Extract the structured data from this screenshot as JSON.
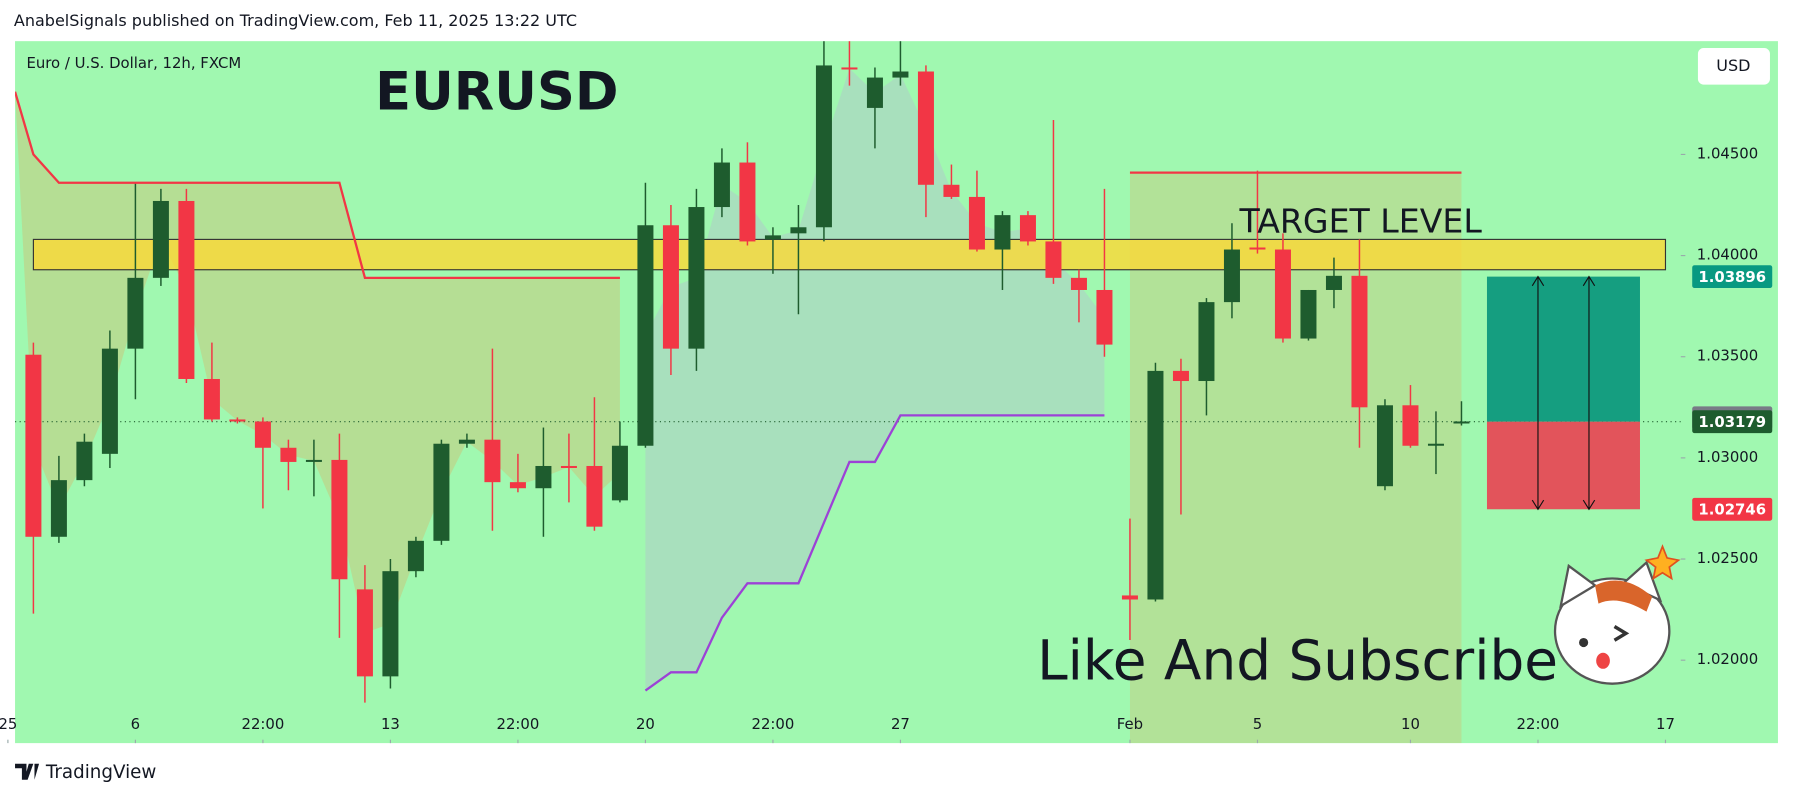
{
  "header": "AnabelSignals published on TradingView.com, Feb 11, 2025 13:22 UTC",
  "footer": "TradingView",
  "chart_data": {
    "type": "candlestick",
    "symbol": "Euro / U.S. Dollar, 12h, FXCM",
    "title": "EURUSD",
    "currency": "USD",
    "annotation": "Like And Subscribe",
    "open": [
      1.0351,
      1.0261,
      1.0289,
      1.0302,
      1.0354,
      1.0389,
      1.0427,
      1.0339,
      1.0319,
      1.0318,
      1.0305,
      1.0298,
      1.0299,
      1.0235,
      1.0192,
      1.0244,
      1.0259,
      1.0307,
      1.0309,
      1.0288,
      1.0285,
      1.0296,
      1.0296,
      1.0279,
      1.0306,
      1.0415,
      1.0354,
      1.0424,
      1.0446,
      1.0408,
      1.0411,
      1.0414,
      1.0493,
      1.0473,
      1.0488,
      1.0491,
      1.0435,
      1.0429,
      1.0403,
      1.042,
      1.0407,
      1.0389,
      1.0383,
      1.0232,
      1.023,
      1.0343,
      1.0338,
      1.0377,
      1.0404,
      1.0403,
      1.0359,
      1.0383,
      1.039,
      1.0286,
      1.0326,
      1.0306,
      1.0317
    ],
    "high": [
      1.0357,
      1.0301,
      1.0312,
      1.0363,
      1.0436,
      1.0433,
      1.0433,
      1.0357,
      1.032,
      1.032,
      1.0309,
      1.0309,
      1.0312,
      1.0247,
      1.025,
      1.0261,
      1.0309,
      1.0312,
      1.0354,
      1.0302,
      1.0315,
      1.0312,
      1.033,
      1.0318,
      1.0436,
      1.0425,
      1.0433,
      1.0453,
      1.0456,
      1.0414,
      1.0425,
      1.0506,
      1.0506,
      1.0493,
      1.0506,
      1.0494,
      1.0445,
      1.0442,
      1.0422,
      1.0422,
      1.0467,
      1.0393,
      1.0433,
      1.027,
      1.0347,
      1.0349,
      1.0379,
      1.0416,
      1.0442,
      1.0411,
      1.0383,
      1.0399,
      1.0408,
      1.0329,
      1.0336,
      1.0323,
      1.0328
    ],
    "low": [
      1.0223,
      1.0258,
      1.0286,
      1.0295,
      1.0329,
      1.0385,
      1.0337,
      1.0318,
      1.0317,
      1.0275,
      1.0284,
      1.0281,
      1.0211,
      1.0179,
      1.0186,
      1.0241,
      1.0257,
      1.0305,
      1.0264,
      1.0283,
      1.0261,
      1.0278,
      1.0264,
      1.0278,
      1.0305,
      1.0341,
      1.0343,
      1.0419,
      1.0405,
      1.0391,
      1.0371,
      1.0407,
      1.0484,
      1.0453,
      1.0484,
      1.0419,
      1.0428,
      1.0402,
      1.0383,
      1.0405,
      1.0386,
      1.0367,
      1.035,
      1.021,
      1.0229,
      1.0272,
      1.0321,
      1.0369,
      1.0401,
      1.0357,
      1.0358,
      1.0374,
      1.0305,
      1.0284,
      1.0305,
      1.0292,
      1.0316
    ],
    "close": [
      1.0261,
      1.0289,
      1.0308,
      1.0354,
      1.0389,
      1.0427,
      1.0339,
      1.0319,
      1.0318,
      1.0305,
      1.0298,
      1.0299,
      1.024,
      1.0192,
      1.0244,
      1.0259,
      1.0307,
      1.0309,
      1.0288,
      1.0285,
      1.0296,
      1.0295,
      1.0266,
      1.0306,
      1.0415,
      1.0354,
      1.0424,
      1.0446,
      1.0407,
      1.041,
      1.0414,
      1.0494,
      1.0492,
      1.0488,
      1.0491,
      1.0435,
      1.0429,
      1.0403,
      1.042,
      1.0407,
      1.0389,
      1.0383,
      1.0356,
      1.023,
      1.0343,
      1.0338,
      1.0377,
      1.0403,
      1.0403,
      1.0359,
      1.0383,
      1.039,
      1.0325,
      1.0326,
      1.0306,
      1.0307,
      1.0318
    ],
    "up_color": "#1e5c2e",
    "down_color": "#f23645",
    "background": "#a0f8b0",
    "xlim": [
      -0.72,
      64.6
    ],
    "xticks": [
      {
        "value": -1,
        "label": "25"
      },
      {
        "value": 4,
        "label": "6"
      },
      {
        "value": 9,
        "label": "22:00"
      },
      {
        "value": 14,
        "label": "13"
      },
      {
        "value": 19,
        "label": "22:00"
      },
      {
        "value": 24,
        "label": "20"
      },
      {
        "value": 29,
        "label": "22:00"
      },
      {
        "value": 34,
        "label": "27"
      },
      {
        "value": 43,
        "label": "Feb"
      },
      {
        "value": 48,
        "label": "5"
      },
      {
        "value": 54,
        "label": "10"
      },
      {
        "value": 59,
        "label": "22:00"
      },
      {
        "value": 64,
        "label": "17"
      }
    ],
    "ylim": [
      1.0159,
      1.0506
    ],
    "yticks": [
      {
        "value": 1.02,
        "label": "1.02000"
      },
      {
        "value": 1.025,
        "label": "1.02500"
      },
      {
        "value": 1.03,
        "label": "1.03000"
      },
      {
        "value": 1.035,
        "label": "1.03500"
      },
      {
        "value": 1.04,
        "label": "1.04000"
      },
      {
        "value": 1.045,
        "label": "1.04500"
      }
    ],
    "lines": [
      {
        "color": "#f23645",
        "x": [
          -0.72,
          0,
          1,
          12,
          13,
          23
        ],
        "y": [
          1.0481,
          1.045,
          1.0436,
          1.0436,
          1.0389,
          1.0389
        ],
        "fill": "#b9d98f"
      },
      {
        "color": "#9c42d6",
        "x": [
          24,
          25,
          26,
          27,
          28,
          30,
          32,
          33,
          34,
          42
        ],
        "y": [
          1.0185,
          1.0194,
          1.0194,
          1.0221,
          1.0238,
          1.0238,
          1.0298,
          1.0298,
          1.0321,
          1.0321
        ],
        "fill": "#a9dcc0"
      },
      {
        "color": "#f23645",
        "x": [
          43,
          56
        ],
        "y": [
          1.0441,
          1.0441
        ],
        "fill": "#b9d98f"
      }
    ],
    "target_zone": {
      "label": "TARGET LEVEL",
      "from": 1.0408,
      "to": 1.0393,
      "start": 0,
      "end": 64,
      "color": "#fdd835"
    },
    "position": {
      "entry": 1.03179,
      "target": 1.03896,
      "stop": 1.02746,
      "start": 57,
      "end": 63,
      "profit_color": "#159e80",
      "loss_color": "#e2545b"
    },
    "price_badges": [
      {
        "value": 1.03896,
        "color": "#089981"
      },
      {
        "value": 1.03198,
        "color": "#787b86"
      },
      {
        "value": 1.03179,
        "color": "#1e5c2e"
      },
      {
        "value": 1.02746,
        "color": "#f23645"
      }
    ]
  }
}
